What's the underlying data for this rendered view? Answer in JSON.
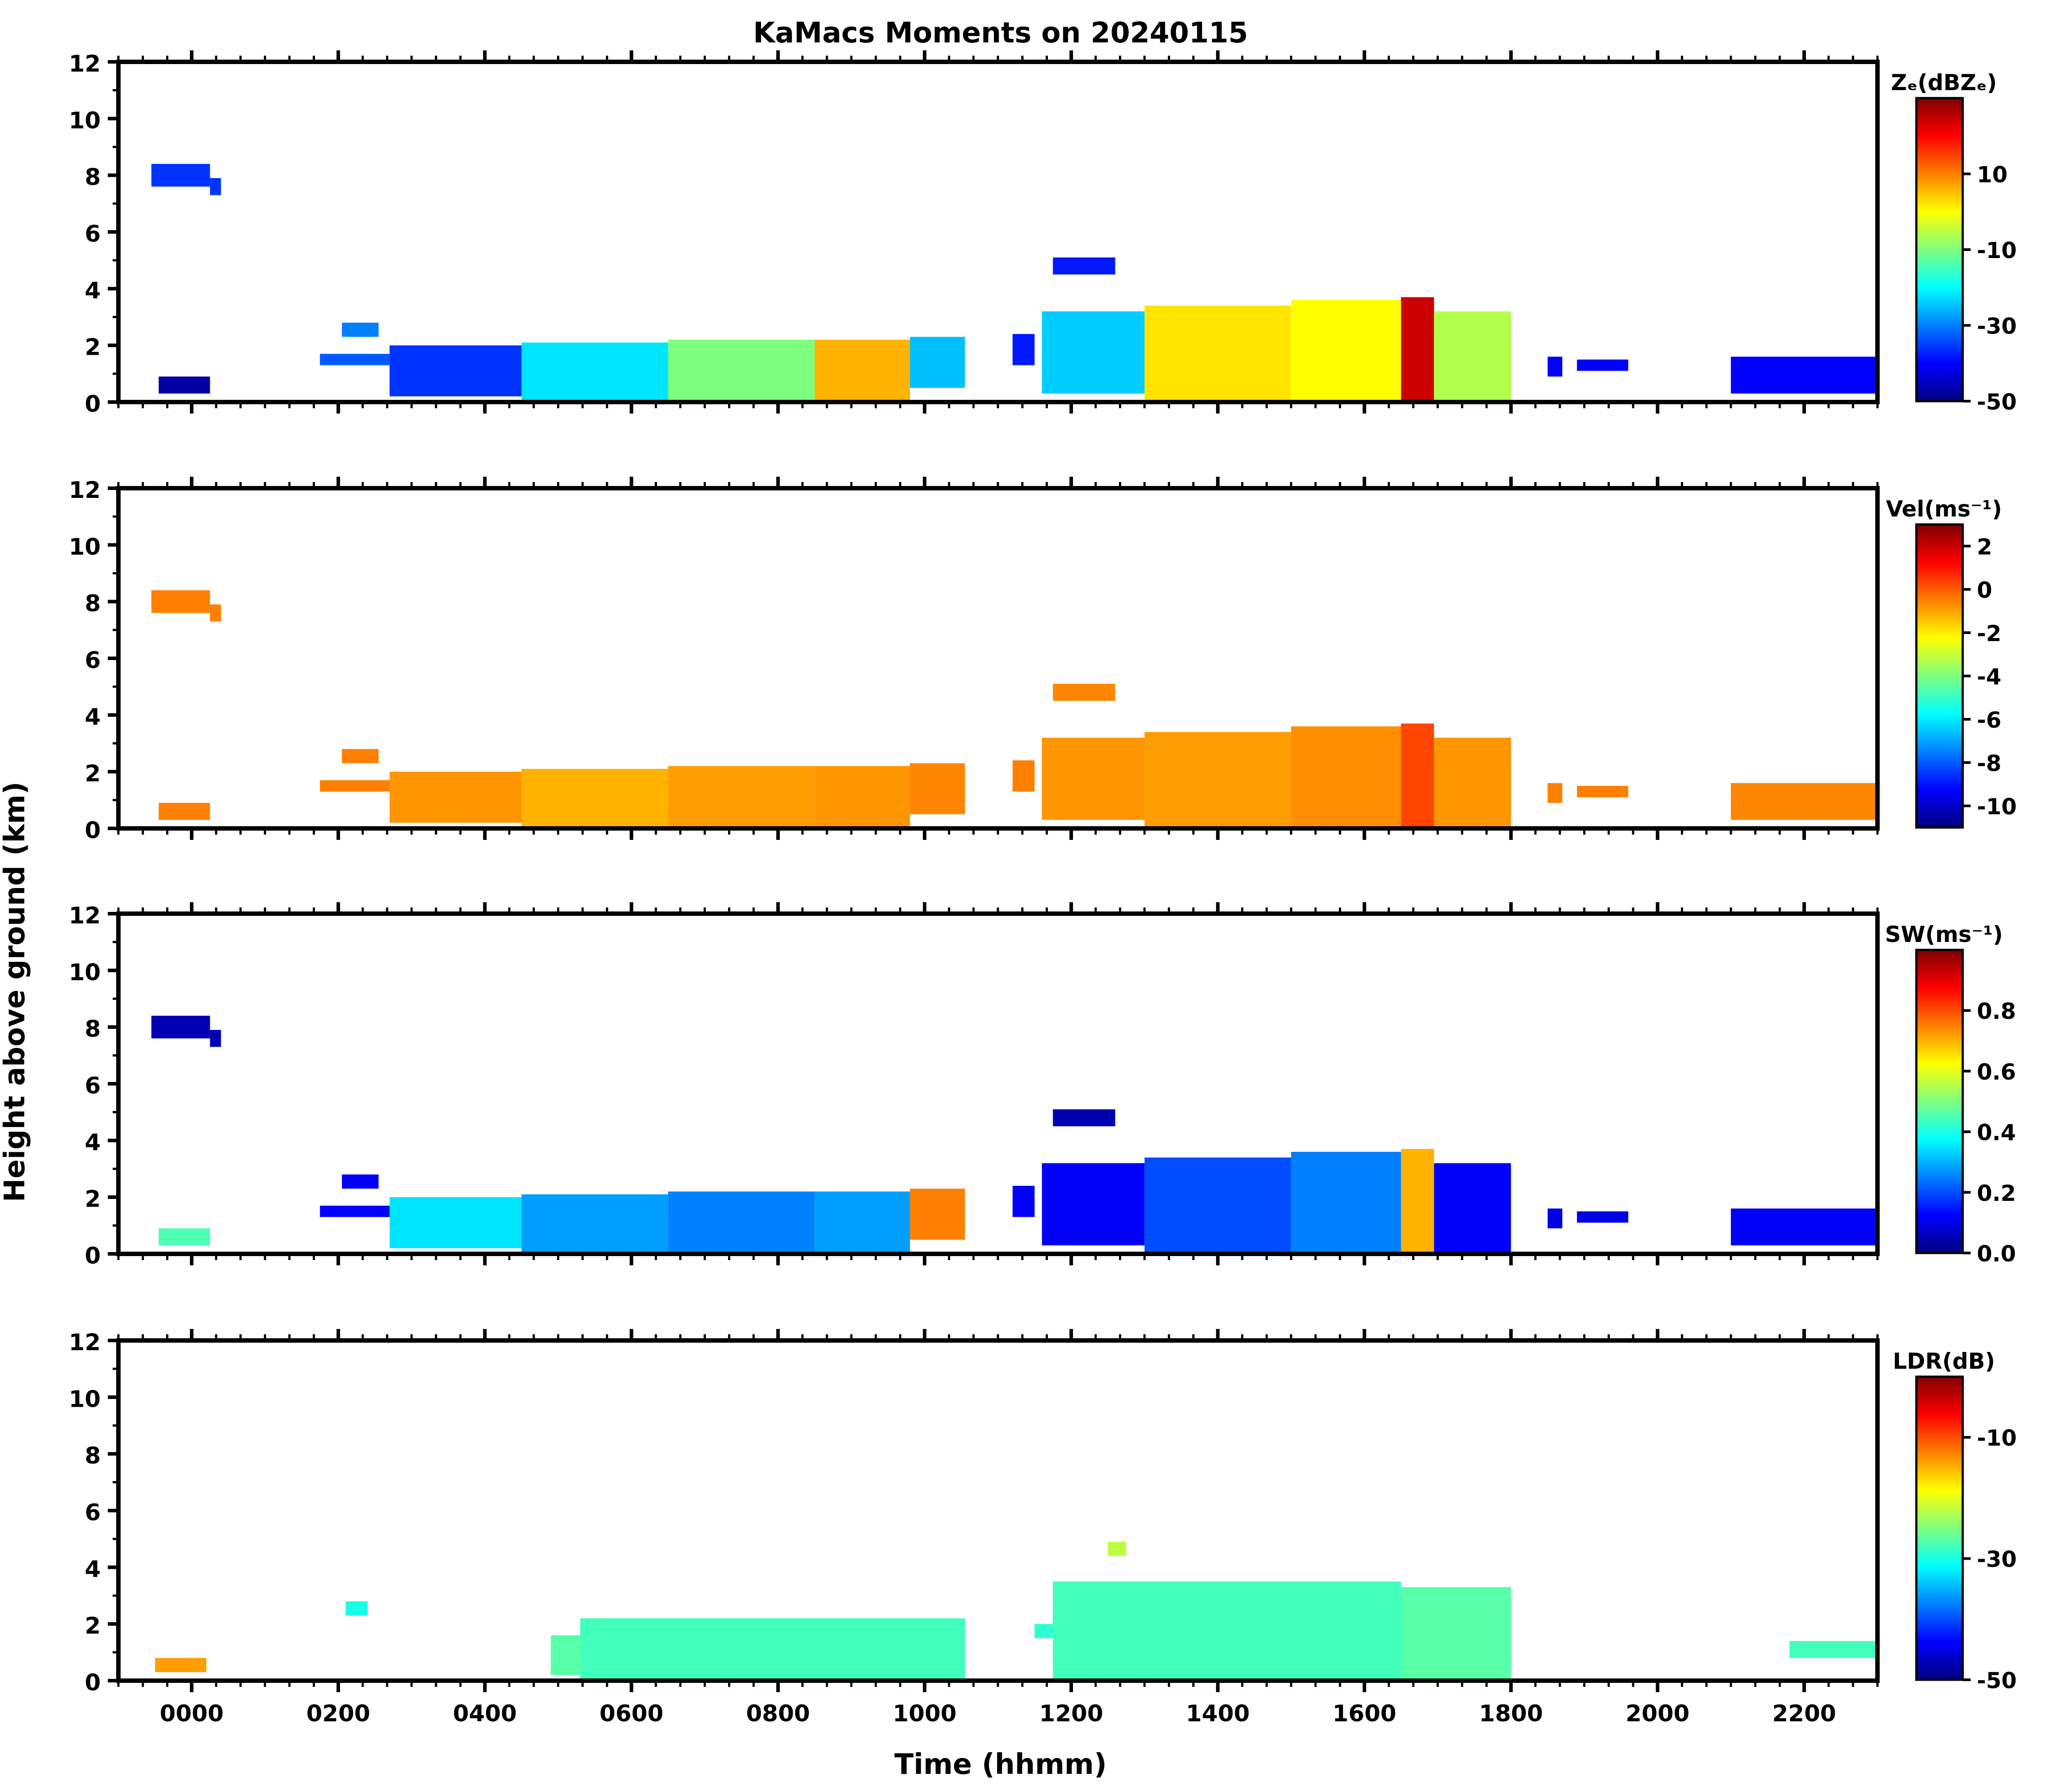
{
  "figure": {
    "title": "KaMacs Moments on 20240115",
    "xlabel": "Time (hhmm)",
    "ylabel": "Height above ground (km)"
  },
  "colormap": [
    "#00007f",
    "#0000ff",
    "#007fff",
    "#00ffff",
    "#7fff7f",
    "#ffff00",
    "#ff7f00",
    "#ff0000",
    "#7f0000"
  ],
  "chart_data": [
    {
      "type": "heatmap",
      "panel": 1,
      "colorbar_label": "Zₑ(dBZₑ)",
      "colorbar_ticks": [
        "10",
        "-10",
        "-30",
        "-50"
      ],
      "colorbar_tick_values": [
        10,
        -10,
        -30,
        -50
      ],
      "colorbar_range": [
        -50,
        30
      ],
      "x_ticks": [
        "0000",
        "0200",
        "0400",
        "0600",
        "0800",
        "1000",
        "1200",
        "1400",
        "1600",
        "1800",
        "2000",
        "2200"
      ],
      "y_ticks": [
        "0",
        "2",
        "4",
        "6",
        "8",
        "10",
        "12"
      ],
      "xlim_hours": [
        -1.0,
        23.0
      ],
      "ylim": [
        0,
        12
      ],
      "regions": [
        {
          "t0": -0.55,
          "t1": 0.25,
          "h0": 7.6,
          "h1": 8.4,
          "value": -36
        },
        {
          "t0": 0.25,
          "t1": 0.4,
          "h0": 7.3,
          "h1": 7.9,
          "value": -36
        },
        {
          "t0": -0.45,
          "t1": 0.25,
          "h0": 0.3,
          "h1": 0.9,
          "value": -47
        },
        {
          "t0": 1.75,
          "t1": 2.7,
          "h0": 1.3,
          "h1": 1.7,
          "value": -33
        },
        {
          "t0": 2.05,
          "t1": 2.55,
          "h0": 2.3,
          "h1": 2.8,
          "value": -30
        },
        {
          "t0": 2.7,
          "t1": 4.5,
          "h0": 0.2,
          "h1": 2.0,
          "value": -36
        },
        {
          "t0": 4.5,
          "t1": 6.5,
          "h0": 0.0,
          "h1": 2.1,
          "value": -22
        },
        {
          "t0": 6.5,
          "t1": 8.5,
          "h0": 0.0,
          "h1": 2.2,
          "value": -10
        },
        {
          "t0": 8.5,
          "t1": 9.8,
          "h0": 0.0,
          "h1": 2.2,
          "value": 6
        },
        {
          "t0": 9.8,
          "t1": 10.55,
          "h0": 0.5,
          "h1": 2.3,
          "value": -25
        },
        {
          "t0": 11.2,
          "t1": 11.5,
          "h0": 1.3,
          "h1": 2.4,
          "value": -38
        },
        {
          "t0": 11.6,
          "t1": 13.0,
          "h0": 0.3,
          "h1": 3.2,
          "value": -24
        },
        {
          "t0": 11.75,
          "t1": 12.6,
          "h0": 4.5,
          "h1": 5.1,
          "value": -38
        },
        {
          "t0": 13.0,
          "t1": 15.0,
          "h0": 0.0,
          "h1": 3.4,
          "value": 2
        },
        {
          "t0": 15.0,
          "t1": 16.5,
          "h0": 0.0,
          "h1": 3.6,
          "value": 0
        },
        {
          "t0": 16.5,
          "t1": 16.95,
          "h0": 0.0,
          "h1": 3.7,
          "value": 24
        },
        {
          "t0": 16.95,
          "t1": 18.0,
          "h0": 0.0,
          "h1": 3.2,
          "value": -6
        },
        {
          "t0": 18.5,
          "t1": 18.7,
          "h0": 0.9,
          "h1": 1.6,
          "value": -40
        },
        {
          "t0": 18.9,
          "t1": 19.6,
          "h0": 1.1,
          "h1": 1.5,
          "value": -40
        },
        {
          "t0": 21.0,
          "t1": 23.0,
          "h0": 0.3,
          "h1": 1.6,
          "value": -40
        }
      ]
    },
    {
      "type": "heatmap",
      "panel": 2,
      "colorbar_label": "Vel(ms⁻¹)",
      "colorbar_ticks": [
        "2",
        "0",
        "-2",
        "-4",
        "-6",
        "-8",
        "-10"
      ],
      "colorbar_tick_values": [
        2,
        0,
        -2,
        -4,
        -6,
        -8,
        -10
      ],
      "colorbar_range": [
        -11,
        3
      ],
      "x_ticks": [
        "0000",
        "0200",
        "0400",
        "0600",
        "0800",
        "1000",
        "1200",
        "1400",
        "1600",
        "1800",
        "2000",
        "2200"
      ],
      "y_ticks": [
        "0",
        "2",
        "4",
        "6",
        "8",
        "10",
        "12"
      ],
      "xlim_hours": [
        -1.0,
        23.0
      ],
      "ylim": [
        0,
        12
      ],
      "regions": [
        {
          "t0": -0.55,
          "t1": 0.25,
          "h0": 7.6,
          "h1": 8.4,
          "value": -0.5
        },
        {
          "t0": 0.25,
          "t1": 0.4,
          "h0": 7.3,
          "h1": 7.9,
          "value": -0.5
        },
        {
          "t0": -0.45,
          "t1": 0.25,
          "h0": 0.3,
          "h1": 0.9,
          "value": -0.5
        },
        {
          "t0": 1.75,
          "t1": 2.7,
          "h0": 1.3,
          "h1": 1.7,
          "value": -0.5
        },
        {
          "t0": 2.05,
          "t1": 2.55,
          "h0": 2.3,
          "h1": 2.8,
          "value": -0.5
        },
        {
          "t0": 2.7,
          "t1": 4.5,
          "h0": 0.2,
          "h1": 2.0,
          "value": -0.8
        },
        {
          "t0": 4.5,
          "t1": 6.5,
          "h0": 0.0,
          "h1": 2.1,
          "value": -1.2
        },
        {
          "t0": 6.5,
          "t1": 8.5,
          "h0": 0.0,
          "h1": 2.2,
          "value": -0.9
        },
        {
          "t0": 8.5,
          "t1": 9.8,
          "h0": 0.0,
          "h1": 2.2,
          "value": -0.8
        },
        {
          "t0": 9.8,
          "t1": 10.55,
          "h0": 0.5,
          "h1": 2.3,
          "value": -0.6
        },
        {
          "t0": 11.2,
          "t1": 11.5,
          "h0": 1.3,
          "h1": 2.4,
          "value": -0.5
        },
        {
          "t0": 11.6,
          "t1": 13.0,
          "h0": 0.3,
          "h1": 3.2,
          "value": -0.8
        },
        {
          "t0": 11.75,
          "t1": 12.6,
          "h0": 4.5,
          "h1": 5.1,
          "value": -0.6
        },
        {
          "t0": 13.0,
          "t1": 15.0,
          "h0": 0.0,
          "h1": 3.4,
          "value": -0.9
        },
        {
          "t0": 15.0,
          "t1": 16.5,
          "h0": 0.0,
          "h1": 3.6,
          "value": -0.7
        },
        {
          "t0": 16.5,
          "t1": 16.95,
          "h0": 0.0,
          "h1": 3.7,
          "value": 0.3
        },
        {
          "t0": 16.95,
          "t1": 18.0,
          "h0": 0.0,
          "h1": 3.2,
          "value": -0.8
        },
        {
          "t0": 18.5,
          "t1": 18.7,
          "h0": 0.9,
          "h1": 1.6,
          "value": -0.5
        },
        {
          "t0": 18.9,
          "t1": 19.6,
          "h0": 1.1,
          "h1": 1.5,
          "value": -0.5
        },
        {
          "t0": 21.0,
          "t1": 23.0,
          "h0": 0.3,
          "h1": 1.6,
          "value": -0.6
        }
      ]
    },
    {
      "type": "heatmap",
      "panel": 3,
      "colorbar_label": "SW(ms⁻¹)",
      "colorbar_ticks": [
        "0.8",
        "0.6",
        "0.4",
        "0.2",
        "0.0"
      ],
      "colorbar_tick_values": [
        0.8,
        0.6,
        0.4,
        0.2,
        0.0
      ],
      "colorbar_range": [
        0,
        1
      ],
      "x_ticks": [
        "0000",
        "0200",
        "0400",
        "0600",
        "0800",
        "1000",
        "1200",
        "1400",
        "1600",
        "1800",
        "2000",
        "2200"
      ],
      "y_ticks": [
        "0",
        "2",
        "4",
        "6",
        "8",
        "10",
        "12"
      ],
      "xlim_hours": [
        -1.0,
        23.0
      ],
      "ylim": [
        0,
        12
      ],
      "regions": [
        {
          "t0": -0.55,
          "t1": 0.25,
          "h0": 7.6,
          "h1": 8.4,
          "value": 0.05
        },
        {
          "t0": 0.25,
          "t1": 0.4,
          "h0": 7.3,
          "h1": 7.9,
          "value": 0.05
        },
        {
          "t0": -0.45,
          "t1": 0.25,
          "h0": 0.3,
          "h1": 0.9,
          "value": 0.45
        },
        {
          "t0": 1.75,
          "t1": 2.7,
          "h0": 1.3,
          "h1": 1.7,
          "value": 0.12
        },
        {
          "t0": 2.05,
          "t1": 2.55,
          "h0": 2.3,
          "h1": 2.8,
          "value": 0.12
        },
        {
          "t0": 2.7,
          "t1": 4.5,
          "h0": 0.2,
          "h1": 2.0,
          "value": 0.35
        },
        {
          "t0": 4.5,
          "t1": 6.5,
          "h0": 0.0,
          "h1": 2.1,
          "value": 0.28
        },
        {
          "t0": 6.5,
          "t1": 8.5,
          "h0": 0.0,
          "h1": 2.2,
          "value": 0.25
        },
        {
          "t0": 8.5,
          "t1": 9.8,
          "h0": 0.0,
          "h1": 2.2,
          "value": 0.28
        },
        {
          "t0": 9.8,
          "t1": 10.55,
          "h0": 0.5,
          "h1": 2.3,
          "value": 0.75
        },
        {
          "t0": 11.2,
          "t1": 11.5,
          "h0": 1.3,
          "h1": 2.4,
          "value": 0.12
        },
        {
          "t0": 11.6,
          "t1": 13.0,
          "h0": 0.3,
          "h1": 3.2,
          "value": 0.12
        },
        {
          "t0": 11.75,
          "t1": 12.6,
          "h0": 4.5,
          "h1": 5.1,
          "value": 0.05
        },
        {
          "t0": 13.0,
          "t1": 15.0,
          "h0": 0.0,
          "h1": 3.4,
          "value": 0.2
        },
        {
          "t0": 15.0,
          "t1": 16.5,
          "h0": 0.0,
          "h1": 3.6,
          "value": 0.25
        },
        {
          "t0": 16.5,
          "t1": 16.95,
          "h0": 0.0,
          "h1": 3.7,
          "value": 0.7
        },
        {
          "t0": 16.95,
          "t1": 18.0,
          "h0": 0.0,
          "h1": 3.2,
          "value": 0.12
        },
        {
          "t0": 18.5,
          "t1": 18.7,
          "h0": 0.9,
          "h1": 1.6,
          "value": 0.1
        },
        {
          "t0": 18.9,
          "t1": 19.6,
          "h0": 1.1,
          "h1": 1.5,
          "value": 0.1
        },
        {
          "t0": 21.0,
          "t1": 23.0,
          "h0": 0.3,
          "h1": 1.6,
          "value": 0.12
        }
      ]
    },
    {
      "type": "heatmap",
      "panel": 4,
      "colorbar_label": "LDR(dB)",
      "colorbar_ticks": [
        "-10",
        "-30",
        "-50"
      ],
      "colorbar_tick_values": [
        -10,
        -30,
        -50
      ],
      "colorbar_range": [
        -50,
        0
      ],
      "x_ticks": [
        "0000",
        "0200",
        "0400",
        "0600",
        "0800",
        "1000",
        "1200",
        "1400",
        "1600",
        "1800",
        "2000",
        "2200"
      ],
      "y_ticks": [
        "0",
        "2",
        "4",
        "6",
        "8",
        "10",
        "12"
      ],
      "xlim_hours": [
        -1.0,
        23.0
      ],
      "ylim": [
        0,
        12
      ],
      "regions": [
        {
          "t0": -0.5,
          "t1": 0.2,
          "h0": 0.3,
          "h1": 0.8,
          "value": -14
        },
        {
          "t0": 2.1,
          "t1": 2.4,
          "h0": 2.3,
          "h1": 2.8,
          "value": -30
        },
        {
          "t0": 4.9,
          "t1": 5.3,
          "h0": 0.2,
          "h1": 1.6,
          "value": -27
        },
        {
          "t0": 5.3,
          "t1": 10.55,
          "h0": 0.0,
          "h1": 2.2,
          "value": -28
        },
        {
          "t0": 11.5,
          "t1": 11.75,
          "h0": 1.5,
          "h1": 2.0,
          "value": -29
        },
        {
          "t0": 11.75,
          "t1": 16.5,
          "h0": 0.0,
          "h1": 3.5,
          "value": -28
        },
        {
          "t0": 16.5,
          "t1": 18.0,
          "h0": 0.0,
          "h1": 3.3,
          "value": -27
        },
        {
          "t0": 12.5,
          "t1": 12.75,
          "h0": 4.4,
          "h1": 4.9,
          "value": -22
        },
        {
          "t0": 21.8,
          "t1": 23.0,
          "h0": 0.8,
          "h1": 1.4,
          "value": -28
        }
      ]
    }
  ]
}
